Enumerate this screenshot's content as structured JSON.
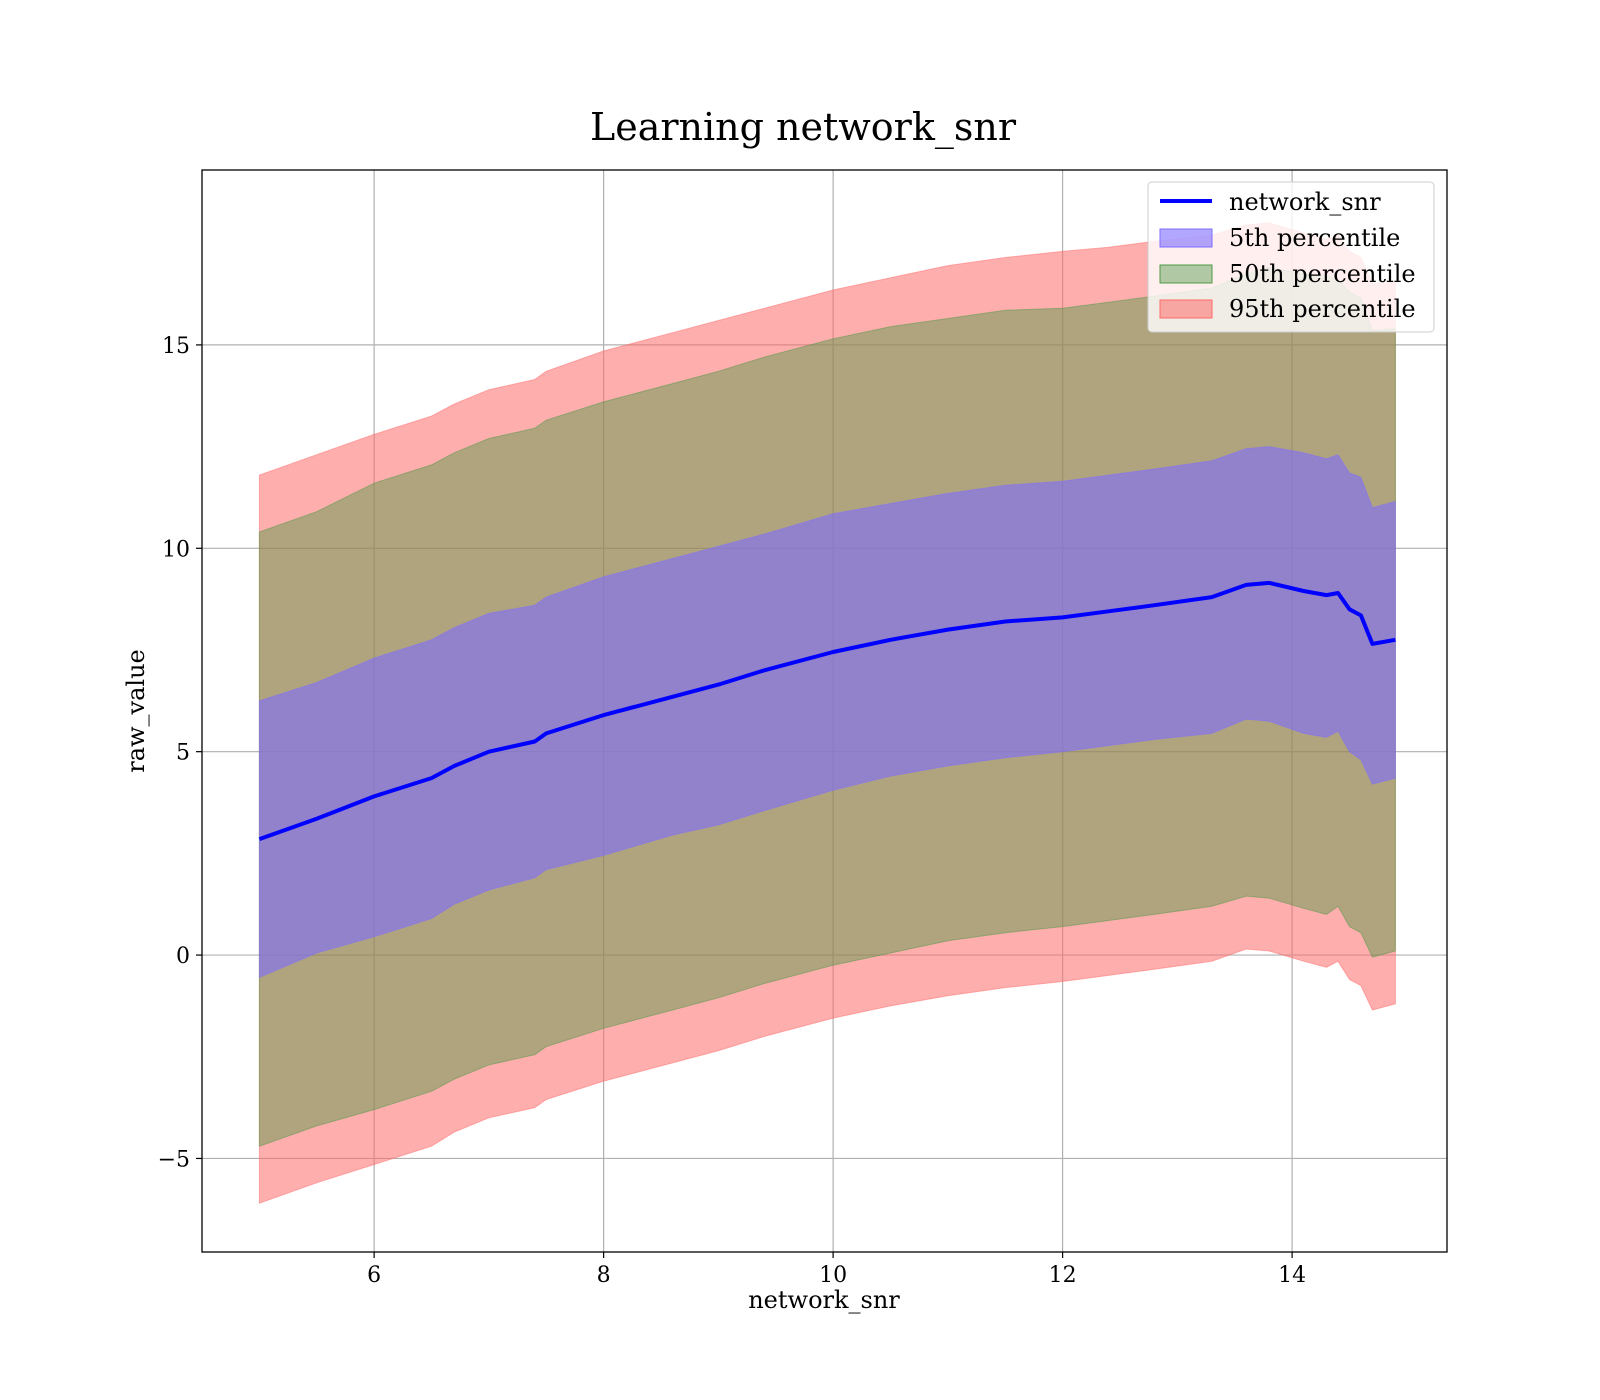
{
  "chart_data": {
    "type": "area",
    "title": "Learning network_snr",
    "xlabel": "network_snr",
    "ylabel": "raw_value",
    "xlim": [
      4.5,
      15.35
    ],
    "ylim": [
      -7.3,
      19.3
    ],
    "xticks": [
      6,
      8,
      10,
      12,
      14
    ],
    "yticks": [
      -5,
      0,
      5,
      10,
      15
    ],
    "ytick_labels": [
      "−5",
      "0",
      "5",
      "10",
      "15"
    ],
    "grid": true,
    "legend_position": "top-right",
    "x": [
      5.0,
      5.5,
      6.0,
      6.5,
      6.7,
      7.0,
      7.4,
      7.5,
      8.0,
      8.6,
      9.0,
      9.4,
      10.0,
      10.5,
      11.0,
      11.5,
      12.0,
      12.4,
      12.8,
      13.3,
      13.6,
      13.8,
      14.1,
      14.3,
      14.4,
      14.5,
      14.6,
      14.7,
      14.9
    ],
    "series": [
      {
        "name": "network_snr",
        "kind": "line",
        "color": "#0000ff",
        "values": [
          2.85,
          3.35,
          3.9,
          4.35,
          4.65,
          5.0,
          5.25,
          5.45,
          5.9,
          6.35,
          6.65,
          7.0,
          7.45,
          7.75,
          8.0,
          8.2,
          8.3,
          8.45,
          8.6,
          8.8,
          9.1,
          9.15,
          8.95,
          8.85,
          8.9,
          8.5,
          8.35,
          7.65,
          7.75
        ]
      },
      {
        "name": "5th percentile",
        "kind": "band",
        "color": "#7f6dff",
        "opacity": 0.6,
        "lower": [
          -0.55,
          0.05,
          0.45,
          0.9,
          1.25,
          1.6,
          1.9,
          2.1,
          2.45,
          2.95,
          3.2,
          3.55,
          4.05,
          4.4,
          4.65,
          4.85,
          5.0,
          5.15,
          5.3,
          5.45,
          5.8,
          5.75,
          5.45,
          5.35,
          5.5,
          5.0,
          4.8,
          4.2,
          4.35
        ],
        "upper": [
          6.25,
          6.7,
          7.3,
          7.75,
          8.05,
          8.4,
          8.6,
          8.8,
          9.3,
          9.75,
          10.05,
          10.35,
          10.85,
          11.1,
          11.35,
          11.55,
          11.65,
          11.8,
          11.95,
          12.15,
          12.45,
          12.5,
          12.35,
          12.2,
          12.3,
          11.85,
          11.75,
          11.0,
          11.15
        ]
      },
      {
        "name": "50th percentile",
        "kind": "band",
        "color": "#4f9a46",
        "opacity": 0.45,
        "lower": [
          -4.7,
          -4.2,
          -3.8,
          -3.35,
          -3.05,
          -2.7,
          -2.45,
          -2.25,
          -1.8,
          -1.35,
          -1.05,
          -0.7,
          -0.25,
          0.05,
          0.35,
          0.55,
          0.7,
          0.85,
          1.0,
          1.2,
          1.45,
          1.4,
          1.15,
          1.0,
          1.2,
          0.7,
          0.55,
          -0.05,
          0.1
        ]
      },
      {
        "name": "95th percentile",
        "kind": "band",
        "color": "#ff6b6b",
        "opacity": 0.55,
        "lower": [
          -6.1,
          -5.6,
          -5.15,
          -4.7,
          -4.35,
          -4.0,
          -3.75,
          -3.55,
          -3.1,
          -2.65,
          -2.35,
          -2.0,
          -1.55,
          -1.25,
          -1.0,
          -0.8,
          -0.65,
          -0.5,
          -0.35,
          -0.15,
          0.15,
          0.1,
          -0.15,
          -0.3,
          -0.15,
          -0.6,
          -0.75,
          -1.35,
          -1.2
        ],
        "upper": [
          11.8,
          12.3,
          12.8,
          13.25,
          13.55,
          13.9,
          14.15,
          14.35,
          14.85,
          15.3,
          15.6,
          15.9,
          16.35,
          16.65,
          16.95,
          17.15,
          17.3,
          17.4,
          17.55,
          17.7,
          17.95,
          18.0,
          17.75,
          17.6,
          17.7,
          17.3,
          17.15,
          16.5,
          16.55
        ]
      }
    ]
  }
}
